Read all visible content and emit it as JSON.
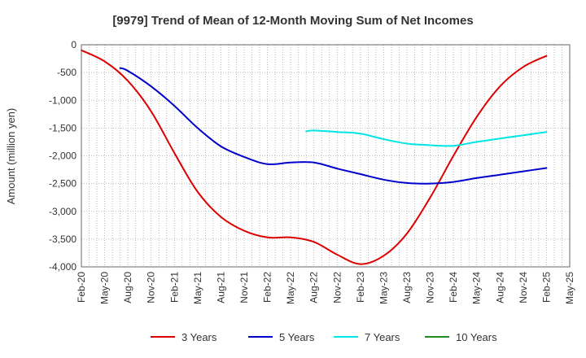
{
  "chart_data": {
    "type": "line",
    "title": "[9979]  Trend of Mean of 12-Month Moving Sum of Net Incomes",
    "xlabel": "",
    "ylabel": "Amount (million yen)",
    "ylim": [
      -4000,
      0
    ],
    "yticks": [
      0,
      -500,
      -1000,
      -1500,
      -2000,
      -2500,
      -3000,
      -3500,
      -4000
    ],
    "ytick_labels": [
      "0",
      "-500",
      "-1,000",
      "-1,500",
      "-2,000",
      "-2,500",
      "-3,000",
      "-3,500",
      "-4,000"
    ],
    "xrange": [
      "2020-02",
      "2025-05"
    ],
    "xticks": [
      "2020-02",
      "2020-05",
      "2020-08",
      "2020-11",
      "2021-02",
      "2021-05",
      "2021-08",
      "2021-11",
      "2022-02",
      "2022-05",
      "2022-08",
      "2022-11",
      "2023-02",
      "2023-05",
      "2023-08",
      "2023-11",
      "2024-02",
      "2024-05",
      "2024-08",
      "2024-11",
      "2025-02",
      "2025-05"
    ],
    "xtick_labels": [
      "Feb-20",
      "May-20",
      "Aug-20",
      "Nov-20",
      "Feb-21",
      "May-21",
      "Aug-21",
      "Nov-21",
      "Feb-22",
      "May-22",
      "Aug-22",
      "Nov-22",
      "Feb-23",
      "May-23",
      "Aug-23",
      "Nov-23",
      "Feb-24",
      "May-24",
      "Aug-24",
      "Nov-24",
      "Feb-25",
      "May-25"
    ],
    "grid": true,
    "legend_position": "bottom",
    "series": [
      {
        "name": "3 Years",
        "color": "#dd0000",
        "points": [
          [
            "2020-02",
            -100
          ],
          [
            "2020-05",
            -300
          ],
          [
            "2020-08",
            -650
          ],
          [
            "2020-11",
            -1200
          ],
          [
            "2021-02",
            -1950
          ],
          [
            "2021-05",
            -2650
          ],
          [
            "2021-08",
            -3100
          ],
          [
            "2021-11",
            -3350
          ],
          [
            "2022-02",
            -3470
          ],
          [
            "2022-05",
            -3470
          ],
          [
            "2022-08",
            -3550
          ],
          [
            "2022-11",
            -3780
          ],
          [
            "2023-02",
            -3950
          ],
          [
            "2023-05",
            -3800
          ],
          [
            "2023-08",
            -3400
          ],
          [
            "2023-11",
            -2750
          ],
          [
            "2024-02",
            -2000
          ],
          [
            "2024-05",
            -1300
          ],
          [
            "2024-08",
            -750
          ],
          [
            "2024-11",
            -400
          ],
          [
            "2025-02",
            -200
          ]
        ]
      },
      {
        "name": "5 Years",
        "color": "#0000cc",
        "points": [
          [
            "2020-07",
            -420
          ],
          [
            "2020-08",
            -470
          ],
          [
            "2020-11",
            -750
          ],
          [
            "2021-02",
            -1100
          ],
          [
            "2021-05",
            -1500
          ],
          [
            "2021-08",
            -1830
          ],
          [
            "2021-11",
            -2020
          ],
          [
            "2022-02",
            -2150
          ],
          [
            "2022-05",
            -2120
          ],
          [
            "2022-08",
            -2120
          ],
          [
            "2022-11",
            -2230
          ],
          [
            "2023-02",
            -2330
          ],
          [
            "2023-05",
            -2430
          ],
          [
            "2023-08",
            -2490
          ],
          [
            "2023-11",
            -2500
          ],
          [
            "2024-02",
            -2470
          ],
          [
            "2024-05",
            -2400
          ],
          [
            "2024-08",
            -2340
          ],
          [
            "2024-11",
            -2280
          ],
          [
            "2025-02",
            -2220
          ]
        ]
      },
      {
        "name": "7 Years",
        "color": "#00e5e5",
        "points": [
          [
            "2022-07",
            -1560
          ],
          [
            "2022-08",
            -1545
          ],
          [
            "2022-11",
            -1570
          ],
          [
            "2023-02",
            -1600
          ],
          [
            "2023-05",
            -1700
          ],
          [
            "2023-08",
            -1780
          ],
          [
            "2023-11",
            -1810
          ],
          [
            "2024-02",
            -1820
          ],
          [
            "2024-05",
            -1750
          ],
          [
            "2024-08",
            -1690
          ],
          [
            "2024-11",
            -1630
          ],
          [
            "2025-02",
            -1570
          ]
        ]
      },
      {
        "name": "10 Years",
        "color": "#228b22",
        "points": []
      }
    ]
  }
}
